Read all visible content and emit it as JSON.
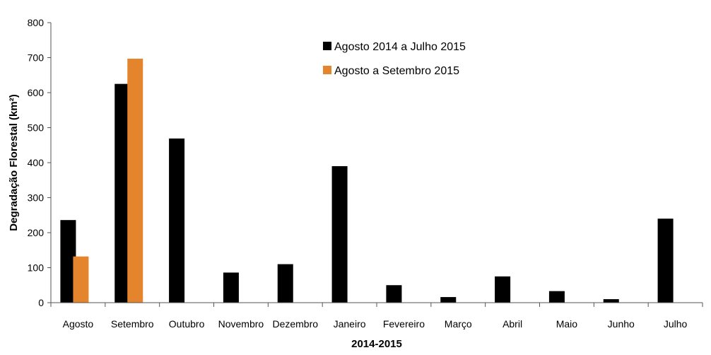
{
  "chart_data": {
    "type": "bar",
    "title": "",
    "xlabel": "2014-2015",
    "ylabel": "Degradação Florestal (km²)",
    "ylim": [
      0,
      800
    ],
    "yticks": [
      0,
      100,
      200,
      300,
      400,
      500,
      600,
      700,
      800
    ],
    "grid": false,
    "legend_position": "top-center",
    "categories": [
      "Agosto",
      "Setembro",
      "Outubro",
      "Novembro",
      "Dezembro",
      "Janeiro",
      "Fevereiro",
      "Março",
      "Abril",
      "Maio",
      "Junho",
      "Julho"
    ],
    "series": [
      {
        "name": "Agosto 2014 a Julho 2015",
        "color": "#000000",
        "values": [
          236,
          625,
          469,
          86,
          110,
          390,
          50,
          16,
          75,
          33,
          10,
          240
        ]
      },
      {
        "name": "Agosto a Setembro 2015",
        "color": "#E4852D",
        "values": [
          132,
          697,
          null,
          null,
          null,
          null,
          null,
          null,
          null,
          null,
          null,
          null
        ]
      }
    ]
  }
}
